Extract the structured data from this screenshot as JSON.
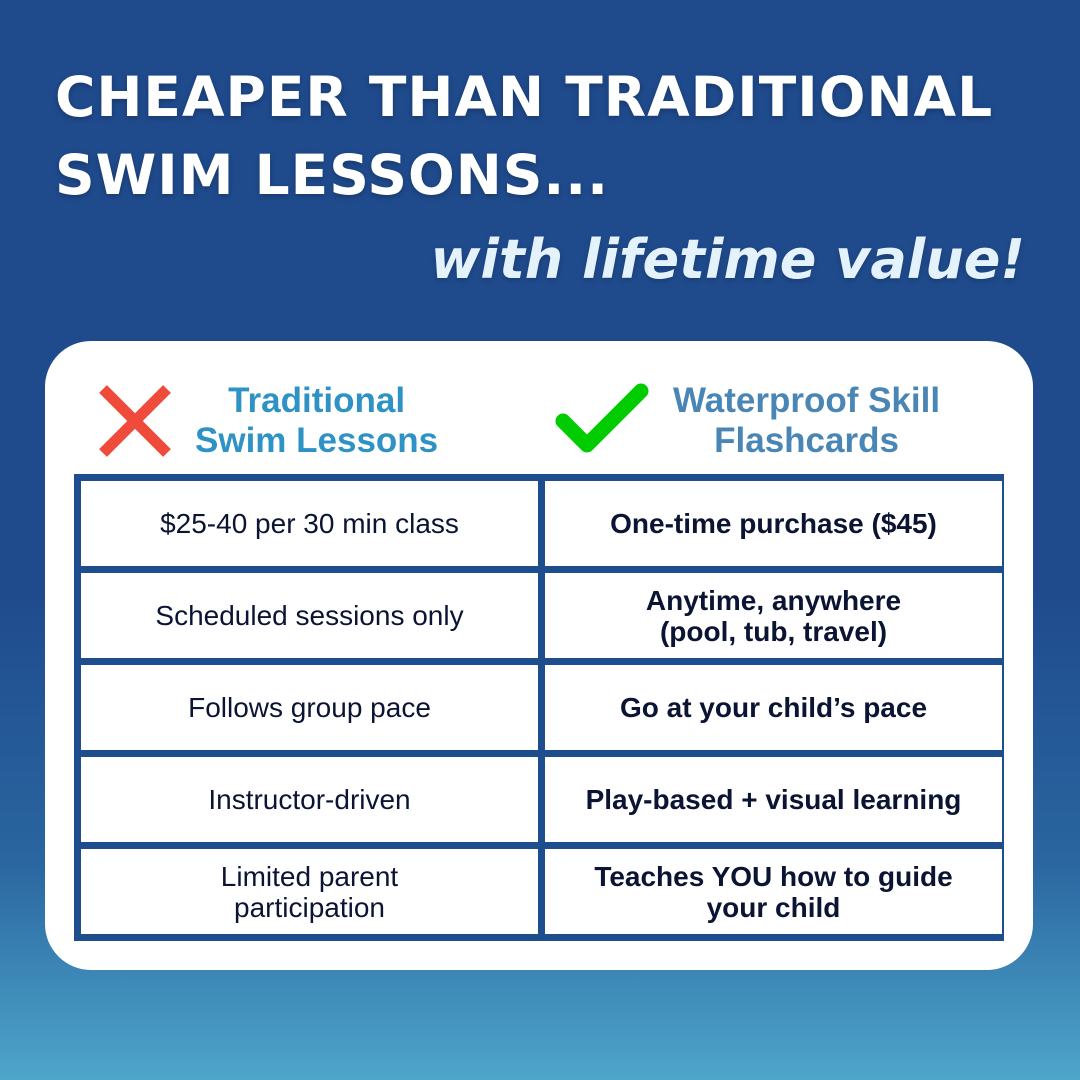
{
  "title_line1": "CHEAPER THAN TRADITIONAL",
  "title_line2": "SWIM LESSONS...",
  "subtitle": "with lifetime value!",
  "colors": {
    "background": "#1f4a8c",
    "table_border": "#1f4e8f",
    "cross": "#f04a3a",
    "check": "#00cc00",
    "left_heading": "#2e93c4",
    "right_heading": "#4a86b5"
  },
  "left": {
    "icon": "x-icon",
    "heading_line1": "Traditional",
    "heading_line2": "Swim Lessons",
    "rows": [
      "$25-40 per 30 min class",
      "Scheduled sessions only",
      "Follows group pace",
      "Instructor-driven",
      "Limited parent participation"
    ]
  },
  "right": {
    "icon": "check-icon",
    "heading_line1": "Waterproof Skill",
    "heading_line2": "Flashcards",
    "rows": [
      "One-time purchase ($45)",
      "Anytime, anywhere (pool, tub, travel)",
      "Go at your child’s pace",
      "Play-based + visual learning",
      "Teaches YOU how to guide your child"
    ]
  }
}
